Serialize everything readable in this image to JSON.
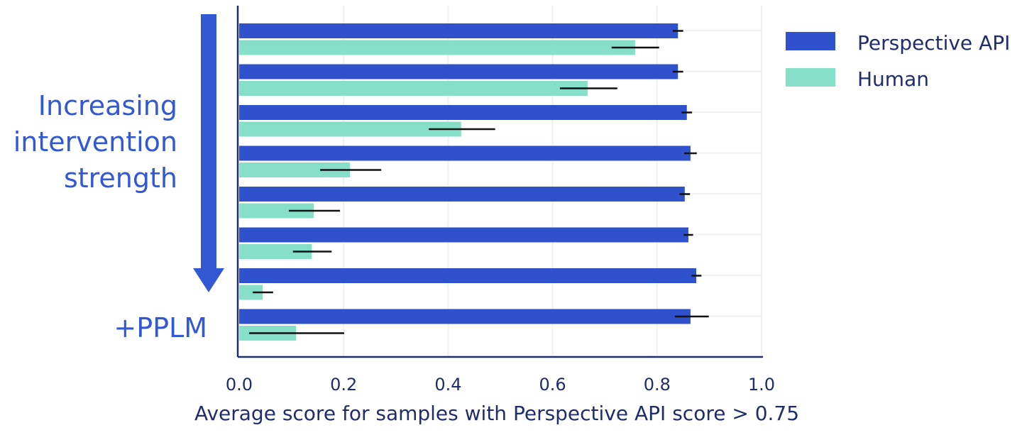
{
  "chart_data": {
    "type": "bar",
    "orientation": "horizontal",
    "categories": [
      "",
      "",
      "",
      "",
      "",
      "",
      "",
      "+PPLM"
    ],
    "series": [
      {
        "name": "Perspective API",
        "color": "#2f51cc",
        "values": [
          0.84,
          0.84,
          0.857,
          0.864,
          0.853,
          0.86,
          0.875,
          0.864
        ],
        "error": [
          [
            0.83,
            0.85
          ],
          [
            0.83,
            0.85
          ],
          [
            0.847,
            0.867
          ],
          [
            0.852,
            0.876
          ],
          [
            0.843,
            0.863
          ],
          [
            0.851,
            0.869
          ],
          [
            0.866,
            0.885
          ],
          [
            0.834,
            0.899
          ]
        ]
      },
      {
        "name": "Human",
        "color": "#86e0c8",
        "values": [
          0.758,
          0.667,
          0.425,
          0.212,
          0.143,
          0.139,
          0.045,
          0.109
        ],
        "error": [
          [
            0.713,
            0.804
          ],
          [
            0.614,
            0.724
          ],
          [
            0.363,
            0.49
          ],
          [
            0.155,
            0.272
          ],
          [
            0.095,
            0.193
          ],
          [
            0.103,
            0.177
          ],
          [
            0.026,
            0.065
          ],
          [
            0.019,
            0.201
          ]
        ]
      }
    ],
    "xlabel": "Average score for samples with Perspective API score > 0.75",
    "xlim": [
      0,
      1.0
    ],
    "xticks": [
      "0.0",
      "0.2",
      "0.4",
      "0.6",
      "0.8",
      "1.0"
    ],
    "grid": true,
    "legend": "top-right",
    "annotation": {
      "text_lines": [
        "Increasing",
        "intervention",
        "strength"
      ],
      "arrow": "down"
    }
  }
}
